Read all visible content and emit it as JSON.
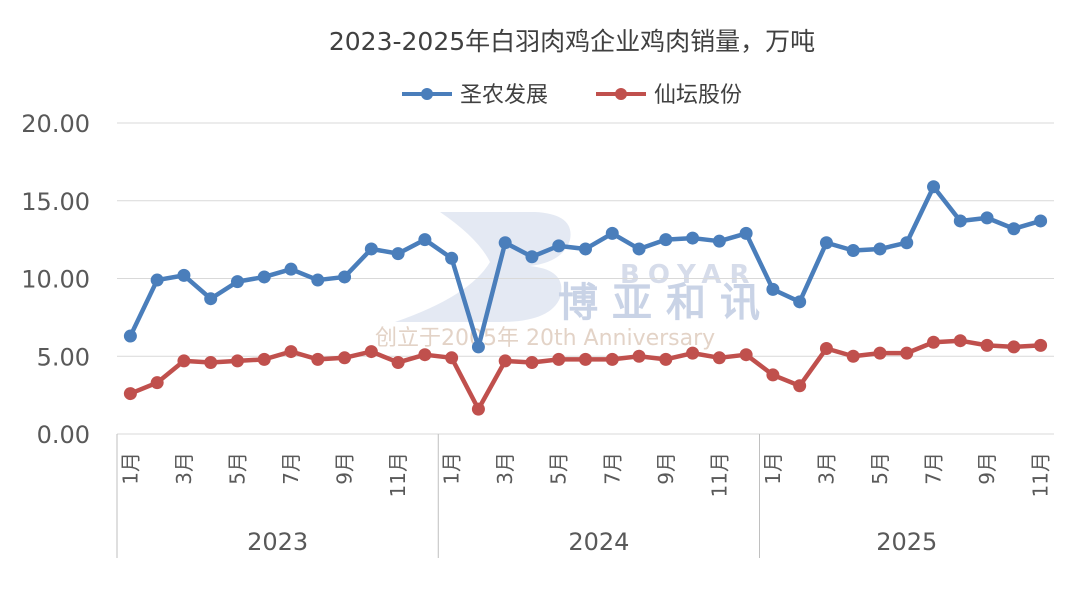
{
  "chart_data": {
    "type": "line",
    "title": "2023-2025年白羽肉鸡企业鸡肉销量，万吨",
    "ylim": [
      0,
      20
    ],
    "yticks": [
      "0.00",
      "5.00",
      "10.00",
      "15.00",
      "20.00"
    ],
    "year_groups": [
      {
        "label": "2023",
        "months": [
          "1月",
          "3月",
          "5月",
          "7月",
          "9月",
          "11月"
        ]
      },
      {
        "label": "2024",
        "months": [
          "1月",
          "3月",
          "5月",
          "7月",
          "9月",
          "11月"
        ]
      },
      {
        "label": "2025",
        "months": [
          "1月",
          "3月",
          "5月",
          "7月",
          "9月",
          "11月"
        ]
      }
    ],
    "series": [
      {
        "name": "圣农发展",
        "color": "#4a7ebb",
        "values": [
          6.3,
          9.9,
          10.2,
          8.7,
          9.8,
          10.1,
          10.6,
          9.9,
          10.1,
          11.9,
          11.6,
          12.5,
          11.3,
          5.6,
          12.3,
          11.4,
          12.1,
          11.9,
          12.9,
          11.9,
          12.5,
          12.6,
          12.4,
          12.9,
          9.3,
          8.5,
          12.3,
          11.8,
          11.9,
          12.3,
          15.9,
          13.7,
          13.9,
          13.2,
          13.7
        ]
      },
      {
        "name": "仙坛股份",
        "color": "#c0504d",
        "values": [
          2.6,
          3.3,
          4.7,
          4.6,
          4.7,
          4.8,
          5.3,
          4.8,
          4.9,
          5.3,
          4.6,
          5.1,
          4.9,
          1.6,
          4.7,
          4.6,
          4.8,
          4.8,
          4.8,
          5.0,
          4.8,
          5.2,
          4.9,
          5.1,
          3.8,
          3.1,
          5.5,
          5.0,
          5.2,
          5.2,
          5.9,
          6.0,
          5.7,
          5.6,
          5.7
        ]
      }
    ]
  },
  "watermark": {
    "logo_en": "BOYAR",
    "logo_cn": "博亚和讯",
    "tagline": "创立于2005年 20th Anniversary"
  }
}
